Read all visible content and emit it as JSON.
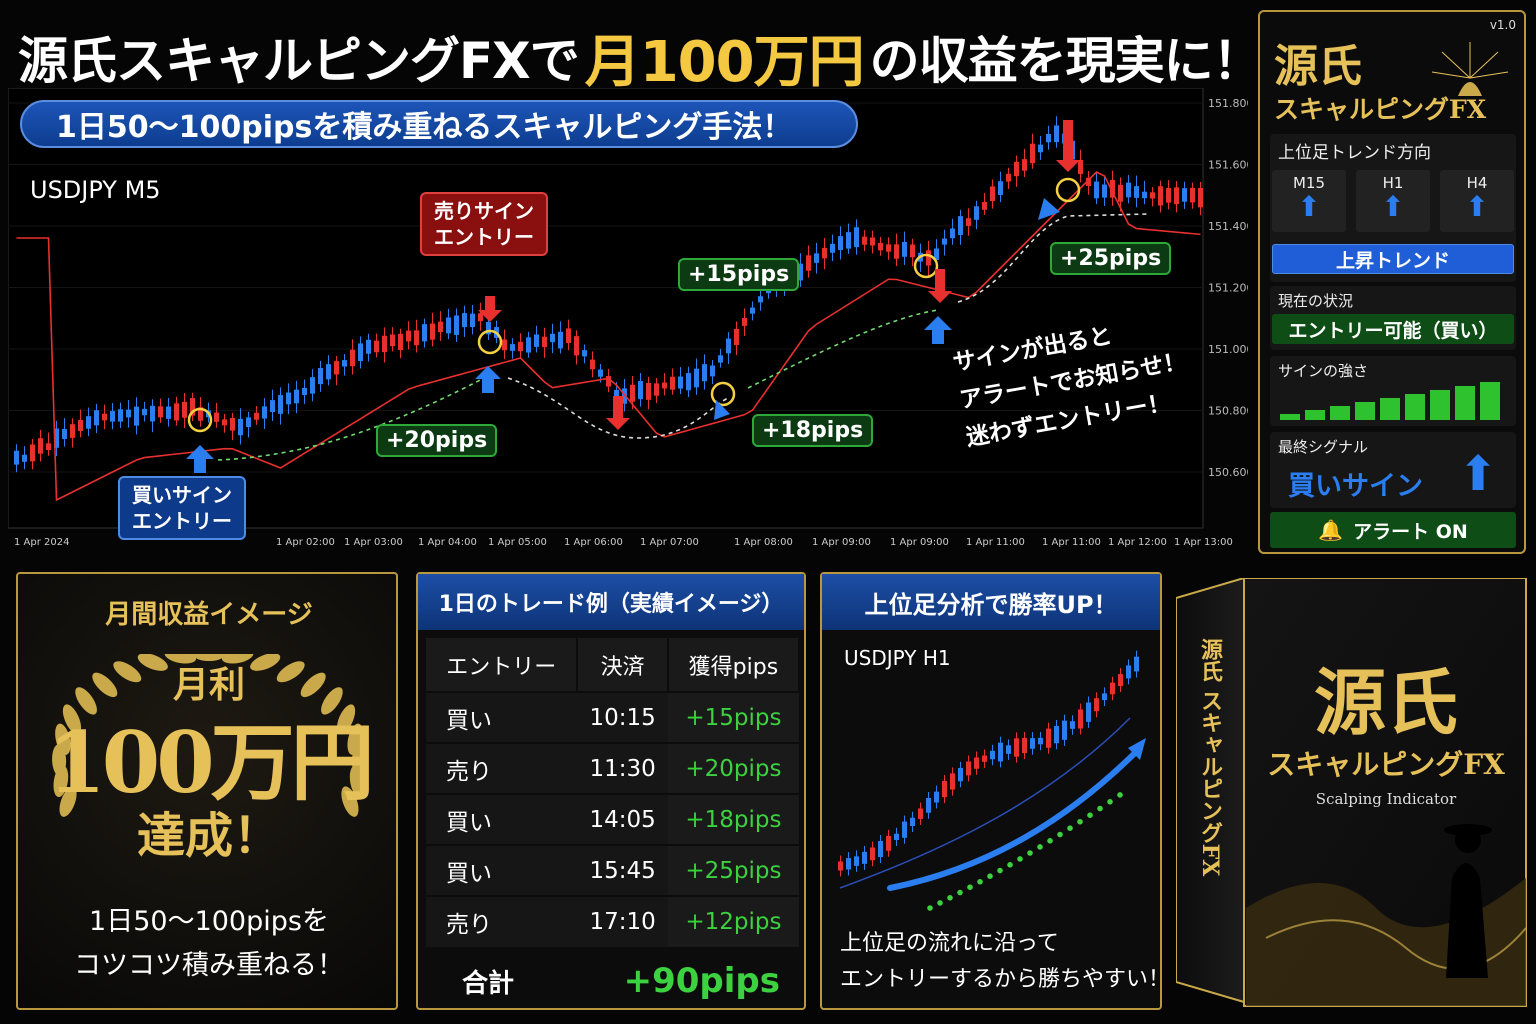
{
  "headline": {
    "part1": "源氏スキャルピングFXで",
    "highlight": "月100万円",
    "part2": "の収益を現実に！"
  },
  "subbanner": "1日50〜100pipsを積み重ねるスキャルピング手法！",
  "main_chart": {
    "pair": "USDJPY M5",
    "price_labels": [
      "151.800",
      "151.600",
      "151.400",
      "151.200",
      "151.000",
      "150.800",
      "150.600"
    ],
    "time_labels": [
      "1 Apr 2024",
      "1 Apr 02:00",
      "1 Apr 03:00",
      "1 Apr 04:00",
      "1 Apr 05:00",
      "1 Apr 06:00",
      "1 Apr 07:00",
      "1 Apr 08:00",
      "1 Apr 09:00",
      "1 Apr 09:00",
      "1 Apr 11:00",
      "1 Apr 11:00",
      "1 Apr 12:00",
      "1 Apr 13:00"
    ],
    "buy_signal_label": "買いサイン\nエントリー",
    "sell_signal_label": "売りサイン\nエントリー",
    "pips_callouts": [
      "+20pips",
      "+15pips",
      "+18pips",
      "+25pips"
    ],
    "alert_text": [
      "サインが出ると",
      "アラートでお知らせ！",
      "迷わずエントリー！"
    ],
    "colors": {
      "up": "#2a7ef0",
      "down": "#e8302e",
      "ma": "#e8302e"
    }
  },
  "panel": {
    "version": "v1.0",
    "logo": "源氏",
    "product": "スキャルピングFX",
    "trend_title": "上位足トレンド方向",
    "timeframes": [
      {
        "label": "M15",
        "icon": "up-arrow-icon"
      },
      {
        "label": "H1",
        "icon": "up-arrow-icon"
      },
      {
        "label": "H4",
        "icon": "up-arrow-icon"
      }
    ],
    "trend_status": "上昇トレンド",
    "situation_title": "現在の状況",
    "situation_status": "エントリー可能（買い）",
    "strength_title": "サインの強さ",
    "strength_level": 9,
    "strength_max": 9,
    "final_title": "最終シグナル",
    "final_signal": "買いサイン",
    "alert_button": "アラート ON"
  },
  "monthly": {
    "title": "月間収益イメージ",
    "label": "月利",
    "amount": "100万円",
    "achieve": "達成！",
    "note1": "1日50〜100pipsを",
    "note2": "コツコツ積み重ねる！"
  },
  "trades": {
    "title": "1日のトレード例（実績イメージ）",
    "headers": [
      "エントリー",
      "決済",
      "獲得pips"
    ],
    "rows": [
      [
        "買い",
        "10:15",
        "+15pips"
      ],
      [
        "売り",
        "11:30",
        "+20pips"
      ],
      [
        "買い",
        "14:05",
        "+18pips"
      ],
      [
        "買い",
        "15:45",
        "+25pips"
      ],
      [
        "売り",
        "17:10",
        "+12pips"
      ]
    ],
    "total_label": "合計",
    "total_value": "+90pips"
  },
  "h1": {
    "title": "上位足分析で勝率UP！",
    "pair": "USDJPY H1",
    "note1": "上位足の流れに沿って",
    "note2": "エントリーするから勝ちやすい！"
  },
  "product_box": {
    "logo": "源氏",
    "name": "スキャルピングFX",
    "tagline": "Scalping Indicator",
    "spine": "源氏 スキャルピングFX"
  }
}
